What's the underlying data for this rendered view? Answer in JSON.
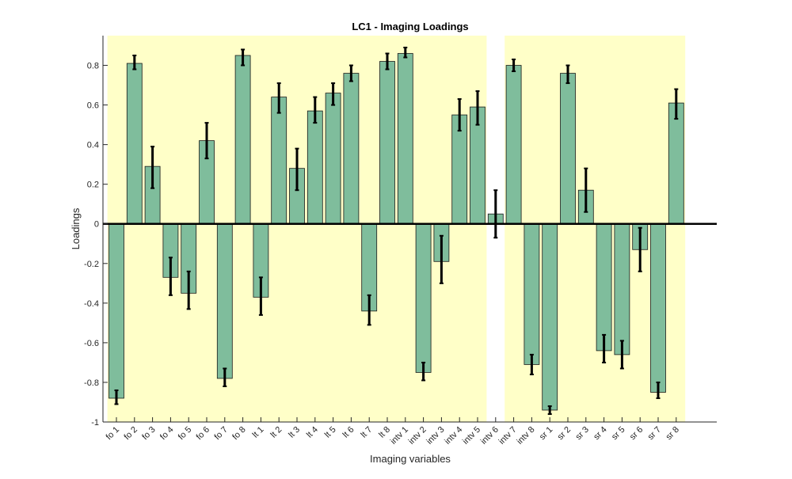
{
  "chart_data": {
    "type": "bar",
    "title": "LC1 - Imaging Loadings",
    "xlabel": "Imaging variables",
    "ylabel": "Loadings",
    "ylim": [
      -1,
      0.95
    ],
    "yticks": [
      -1,
      -0.8,
      -0.6,
      -0.4,
      -0.2,
      0,
      0.2,
      0.4,
      0.6,
      0.8
    ],
    "ytick_labels": [
      "-1",
      "-0.8",
      "-0.6",
      "-0.4",
      "-0.2",
      "0",
      "0.2",
      "0.4",
      "0.6",
      "0.8"
    ],
    "grid": false,
    "bar_color": "#7fbd9c",
    "highlight_color": "#ffffc8",
    "highlighted_ranges": [
      [
        0,
        20
      ],
      [
        22,
        31
      ]
    ],
    "categories": [
      "fo 1",
      "fo 2",
      "fo 3",
      "fo 4",
      "fo 5",
      "fo 6",
      "fo 7",
      "fo 8",
      "lt 1",
      "lt 2",
      "lt 3",
      "lt 4",
      "lt 5",
      "lt 6",
      "lt 7",
      "lt 8",
      "intv 1",
      "intv 2",
      "intv 3",
      "intv 4",
      "intv 5",
      "intv 6",
      "intv 7",
      "intv 8",
      "sr 1",
      "sr 2",
      "sr 3",
      "sr 4",
      "sr 5",
      "sr 6",
      "sr 7",
      "sr 8"
    ],
    "values": [
      -0.88,
      0.81,
      0.29,
      -0.27,
      -0.35,
      0.42,
      -0.78,
      0.85,
      -0.37,
      0.64,
      0.28,
      0.57,
      0.66,
      0.76,
      -0.44,
      0.82,
      0.86,
      -0.75,
      -0.19,
      0.55,
      0.59,
      0.05,
      0.8,
      -0.71,
      -0.94,
      0.76,
      0.17,
      -0.64,
      -0.66,
      -0.13,
      -0.85,
      0.61
    ],
    "err_low": [
      -0.91,
      0.78,
      0.18,
      -0.36,
      -0.43,
      0.33,
      -0.82,
      0.8,
      -0.46,
      0.56,
      0.17,
      0.51,
      0.6,
      0.72,
      -0.51,
      0.78,
      0.84,
      -0.79,
      -0.3,
      0.47,
      0.5,
      -0.07,
      0.77,
      -0.76,
      -0.96,
      0.71,
      0.06,
      -0.7,
      -0.73,
      -0.24,
      -0.88,
      0.53
    ],
    "err_high": [
      -0.84,
      0.85,
      0.39,
      -0.17,
      -0.24,
      0.51,
      -0.73,
      0.88,
      -0.27,
      0.71,
      0.38,
      0.64,
      0.71,
      0.8,
      -0.36,
      0.86,
      0.89,
      -0.7,
      -0.06,
      0.63,
      0.67,
      0.17,
      0.83,
      -0.66,
      -0.92,
      0.8,
      0.28,
      -0.56,
      -0.59,
      -0.02,
      -0.8,
      0.68
    ]
  }
}
